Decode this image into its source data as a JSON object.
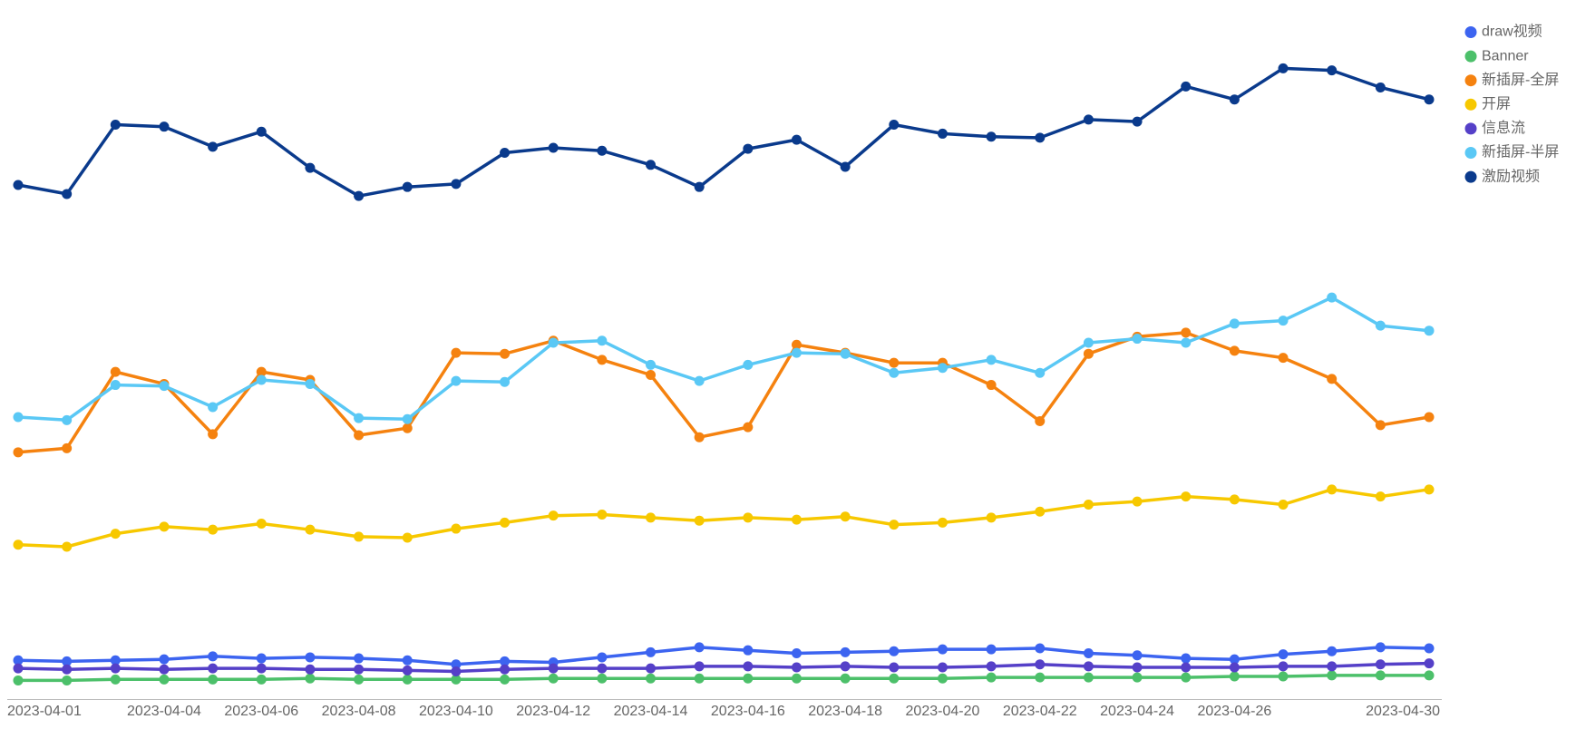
{
  "chart_data": {
    "type": "line",
    "categories": [
      "2023-04-01",
      null,
      null,
      "2023-04-04",
      null,
      "2023-04-06",
      null,
      "2023-04-08",
      null,
      "2023-04-10",
      null,
      "2023-04-12",
      null,
      "2023-04-14",
      null,
      "2023-04-16",
      null,
      "2023-04-18",
      null,
      "2023-04-20",
      null,
      "2023-04-22",
      null,
      "2023-04-24",
      null,
      "2023-04-26",
      null,
      null,
      null,
      "2023-04-30"
    ],
    "ylim": [
      0,
      130
    ],
    "legend": "top-right",
    "series": [
      {
        "name": "draw视频",
        "color": "#3c64f0",
        "values": [
          7.8,
          7.6,
          7.8,
          8,
          8.6,
          8.2,
          8.4,
          8.2,
          7.8,
          7,
          7.6,
          7.4,
          8.4,
          9.4,
          10.4,
          9.8,
          9.2,
          9.4,
          9.6,
          10,
          10,
          10.2,
          9.2,
          8.8,
          8.2,
          8,
          9,
          9.6,
          10.4,
          10.2
        ]
      },
      {
        "name": "Banner",
        "color": "#4cc06a",
        "values": [
          3.8,
          3.8,
          4,
          4,
          4,
          4,
          4.2,
          4,
          4,
          4,
          4,
          4.2,
          4.2,
          4.2,
          4.2,
          4.2,
          4.2,
          4.2,
          4.2,
          4.2,
          4.4,
          4.4,
          4.4,
          4.4,
          4.4,
          4.6,
          4.6,
          4.8,
          4.8,
          4.8
        ]
      },
      {
        "name": "新插屏-全屏",
        "color": "#f5820f",
        "values": [
          49.2,
          50,
          65.2,
          62.8,
          52.8,
          65.2,
          63.6,
          52.6,
          54,
          69,
          68.8,
          71.4,
          67.6,
          64.6,
          52.2,
          54.2,
          70.6,
          69,
          67,
          67,
          62.6,
          55.4,
          68.8,
          72.2,
          73,
          69.4,
          68,
          63.8,
          54.6,
          56.2
        ]
      },
      {
        "name": "开屏",
        "color": "#f7c800",
        "values": [
          30.8,
          30.4,
          33,
          34.4,
          33.8,
          35,
          33.8,
          32.4,
          32.2,
          34,
          35.2,
          36.6,
          36.8,
          36.2,
          35.6,
          36.2,
          35.8,
          36.4,
          34.8,
          35.2,
          36.2,
          37.4,
          38.8,
          39.4,
          40.4,
          39.8,
          38.8,
          41.8,
          40.4,
          41.8
        ]
      },
      {
        "name": "信息流",
        "color": "#5540c8",
        "values": [
          6.2,
          6,
          6.2,
          6,
          6.2,
          6.2,
          6,
          6,
          5.8,
          5.6,
          6,
          6.2,
          6.2,
          6.2,
          6.6,
          6.6,
          6.4,
          6.6,
          6.4,
          6.4,
          6.6,
          7,
          6.6,
          6.4,
          6.4,
          6.4,
          6.6,
          6.6,
          7,
          7.2
        ]
      },
      {
        "name": "新插屏-半屏",
        "color": "#5ac8f5",
        "values": [
          56.2,
          55.6,
          62.6,
          62.4,
          58.2,
          63.6,
          62.8,
          56,
          55.8,
          63.4,
          63.2,
          71,
          71.4,
          66.6,
          63.4,
          66.6,
          69,
          68.8,
          65,
          66,
          67.6,
          65,
          71,
          71.8,
          71,
          74.8,
          75.4,
          80,
          74.4,
          73.4
        ]
      },
      {
        "name": "激励视频",
        "color": "#0a3a8c",
        "values": [
          102.4,
          100.6,
          114.4,
          114,
          110,
          113,
          105.8,
          100.2,
          102,
          102.6,
          108.8,
          109.8,
          109.2,
          106.4,
          102,
          109.6,
          111.4,
          106,
          114.4,
          112.6,
          112,
          111.8,
          115.4,
          115,
          122,
          119.4,
          125.6,
          125.2,
          121.8,
          119.4
        ]
      }
    ]
  }
}
